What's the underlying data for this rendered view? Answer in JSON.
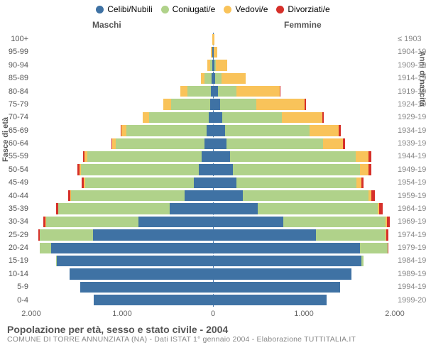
{
  "legend": [
    {
      "label": "Celibi/Nubili",
      "color": "#3f72a4"
    },
    {
      "label": "Coniugati/e",
      "color": "#b0d28a"
    },
    {
      "label": "Vedovi/e",
      "color": "#f9c35a"
    },
    {
      "label": "Divorziati/e",
      "color": "#d6302a"
    }
  ],
  "headers": {
    "left": "Maschi",
    "right": "Femmine"
  },
  "axis": {
    "left_title": "Fasce di età",
    "right_title": "Anni di nascita"
  },
  "x_ticks": [
    {
      "pos": 0,
      "label": "2.000"
    },
    {
      "pos": 1000,
      "label": "1.000"
    },
    {
      "pos": 2000,
      "label": "0"
    },
    {
      "pos": 3000,
      "label": "1.000"
    },
    {
      "pos": 4000,
      "label": "2.000"
    }
  ],
  "max_value": 2000,
  "title": "Popolazione per età, sesso e stato civile - 2004",
  "subtitle": "COMUNE DI TORRE ANNUNZIATA (NA) - Dati ISTAT 1° gennaio 2004 - Elaborazione TUTTITALIA.IT",
  "colors": {
    "celibi": "#3f72a4",
    "coniugati": "#b0d28a",
    "vedovi": "#f9c35a",
    "divorziati": "#d6302a"
  },
  "rows": [
    {
      "age": "100+",
      "birth": "≤ 1903",
      "m": [
        0,
        0,
        5,
        0
      ],
      "f": [
        0,
        0,
        15,
        0
      ]
    },
    {
      "age": "95-99",
      "birth": "1904-1908",
      "m": [
        5,
        5,
        10,
        0
      ],
      "f": [
        5,
        5,
        40,
        0
      ]
    },
    {
      "age": "90-94",
      "birth": "1909-1913",
      "m": [
        10,
        20,
        30,
        0
      ],
      "f": [
        15,
        20,
        120,
        0
      ]
    },
    {
      "age": "85-89",
      "birth": "1914-1918",
      "m": [
        15,
        80,
        40,
        0
      ],
      "f": [
        25,
        65,
        270,
        0
      ]
    },
    {
      "age": "80-84",
      "birth": "1919-1923",
      "m": [
        25,
        260,
        75,
        0
      ],
      "f": [
        55,
        200,
        480,
        10
      ]
    },
    {
      "age": "75-79",
      "birth": "1924-1928",
      "m": [
        35,
        430,
        80,
        0
      ],
      "f": [
        80,
        400,
        530,
        10
      ]
    },
    {
      "age": "70-74",
      "birth": "1929-1933",
      "m": [
        50,
        650,
        70,
        5
      ],
      "f": [
        105,
        650,
        450,
        15
      ]
    },
    {
      "age": "65-69",
      "birth": "1934-1938",
      "m": [
        70,
        880,
        55,
        10
      ],
      "f": [
        135,
        930,
        320,
        20
      ]
    },
    {
      "age": "60-64",
      "birth": "1939-1943",
      "m": [
        90,
        980,
        40,
        10
      ],
      "f": [
        150,
        1060,
        220,
        20
      ]
    },
    {
      "age": "55-59",
      "birth": "1944-1948",
      "m": [
        125,
        1260,
        30,
        15
      ],
      "f": [
        190,
        1380,
        140,
        30
      ]
    },
    {
      "age": "50-54",
      "birth": "1949-1953",
      "m": [
        160,
        1290,
        20,
        20
      ],
      "f": [
        220,
        1400,
        90,
        30
      ]
    },
    {
      "age": "45-49",
      "birth": "1954-1958",
      "m": [
        210,
        1200,
        15,
        20
      ],
      "f": [
        255,
        1320,
        55,
        30
      ]
    },
    {
      "age": "40-44",
      "birth": "1959-1963",
      "m": [
        310,
        1250,
        10,
        25
      ],
      "f": [
        330,
        1380,
        35,
        35
      ]
    },
    {
      "age": "35-39",
      "birth": "1964-1968",
      "m": [
        480,
        1220,
        5,
        20
      ],
      "f": [
        490,
        1320,
        20,
        35
      ]
    },
    {
      "age": "30-34",
      "birth": "1969-1973",
      "m": [
        820,
        1020,
        5,
        20
      ],
      "f": [
        770,
        1130,
        12,
        30
      ]
    },
    {
      "age": "25-29",
      "birth": "1974-1978",
      "m": [
        1320,
        590,
        0,
        15
      ],
      "f": [
        1130,
        770,
        8,
        25
      ]
    },
    {
      "age": "20-24",
      "birth": "1979-1983",
      "m": [
        1780,
        130,
        0,
        0
      ],
      "f": [
        1620,
        300,
        0,
        5
      ]
    },
    {
      "age": "15-19",
      "birth": "1984-1988",
      "m": [
        1720,
        5,
        0,
        0
      ],
      "f": [
        1630,
        25,
        0,
        0
      ]
    },
    {
      "age": "10-14",
      "birth": "1989-1993",
      "m": [
        1580,
        0,
        0,
        0
      ],
      "f": [
        1520,
        0,
        0,
        0
      ]
    },
    {
      "age": "5-9",
      "birth": "1994-1998",
      "m": [
        1460,
        0,
        0,
        0
      ],
      "f": [
        1400,
        0,
        0,
        0
      ]
    },
    {
      "age": "0-4",
      "birth": "1999-2003",
      "m": [
        1310,
        0,
        0,
        0
      ],
      "f": [
        1250,
        0,
        0,
        0
      ]
    }
  ]
}
